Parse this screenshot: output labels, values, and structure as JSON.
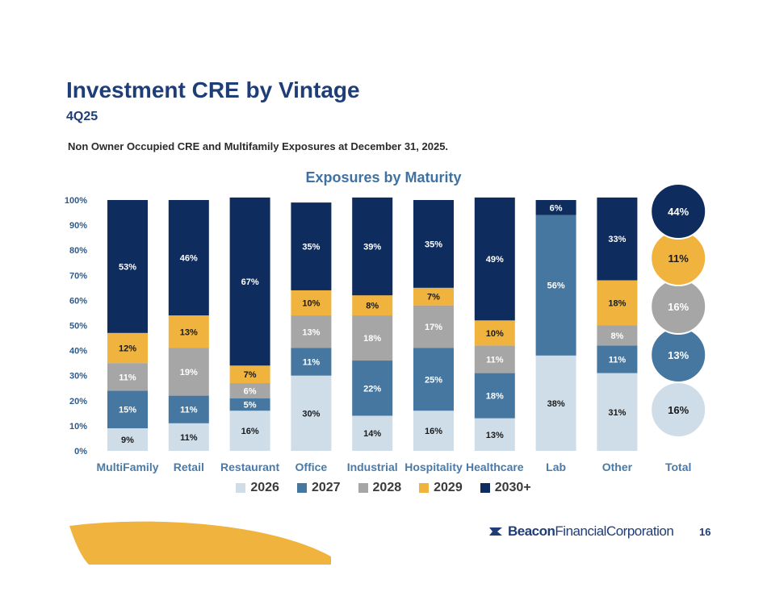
{
  "header": {
    "title": "Investment CRE by Vintage",
    "subtitle": "4Q25",
    "description": "Non Owner Occupied CRE and Multifamily Exposures at December 31, 2025."
  },
  "chart_data": {
    "type": "bar",
    "stacked": true,
    "title": "Exposures by Maturity",
    "categories": [
      "MultiFamily",
      "Retail",
      "Restaurant",
      "Office",
      "Industrial",
      "Hospitality",
      "Healthcare",
      "Lab",
      "Other",
      "Total"
    ],
    "y_ticks": [
      "0%",
      "10%",
      "20%",
      "30%",
      "40%",
      "50%",
      "60%",
      "70%",
      "80%",
      "90%",
      "100%"
    ],
    "ylim": [
      0,
      100
    ],
    "series": [
      {
        "name": "2026",
        "color": "#cfdde9",
        "label_color": "#1a1a1a",
        "values": [
          9,
          11,
          16,
          30,
          14,
          16,
          13,
          38,
          31,
          16
        ]
      },
      {
        "name": "2027",
        "color": "#4677a0",
        "label_color": "#ffffff",
        "values": [
          15,
          11,
          5,
          11,
          22,
          25,
          18,
          56,
          11,
          13
        ]
      },
      {
        "name": "2028",
        "color": "#a6a6a6",
        "label_color": "#ffffff",
        "values": [
          11,
          19,
          6,
          13,
          18,
          17,
          11,
          0,
          8,
          16
        ]
      },
      {
        "name": "2029",
        "color": "#f0b33d",
        "label_color": "#1a1a1a",
        "values": [
          12,
          13,
          7,
          10,
          8,
          7,
          10,
          0,
          18,
          11
        ]
      },
      {
        "name": "2030+",
        "color": "#0e2c5e",
        "label_color": "#ffffff",
        "values": [
          53,
          46,
          67,
          35,
          39,
          35,
          49,
          6,
          33,
          44
        ]
      }
    ],
    "data_labels": [
      [
        "9%",
        "15%",
        "11%",
        "12%",
        "53%"
      ],
      [
        "11%",
        "11%",
        "19%",
        "13%",
        "46%"
      ],
      [
        "16%",
        "5%",
        "6%",
        "7%",
        "67%"
      ],
      [
        "30%",
        "11%",
        "13%",
        "10%",
        "35%"
      ],
      [
        "14%",
        "22%",
        "18%",
        "8%",
        "39%"
      ],
      [
        "16%",
        "25%",
        "17%",
        "7%",
        "35%"
      ],
      [
        "13%",
        "18%",
        "11%",
        "10%",
        "49%"
      ],
      [
        "38%",
        "56%",
        "",
        "",
        "6%"
      ],
      [
        "31%",
        "11%",
        "8%",
        "18%",
        "33%"
      ],
      [
        "16%",
        "13%",
        "16%",
        "11%",
        "44%"
      ]
    ],
    "total_display": "circles",
    "legend": [
      "2026",
      "2027",
      "2028",
      "2029",
      "2030+"
    ],
    "legend_position": "bottom"
  },
  "footer": {
    "logo_bold": "Beacon",
    "logo_regular": "FinancialCorporation",
    "page_number": "16",
    "accent_color": "#f0b33d"
  }
}
